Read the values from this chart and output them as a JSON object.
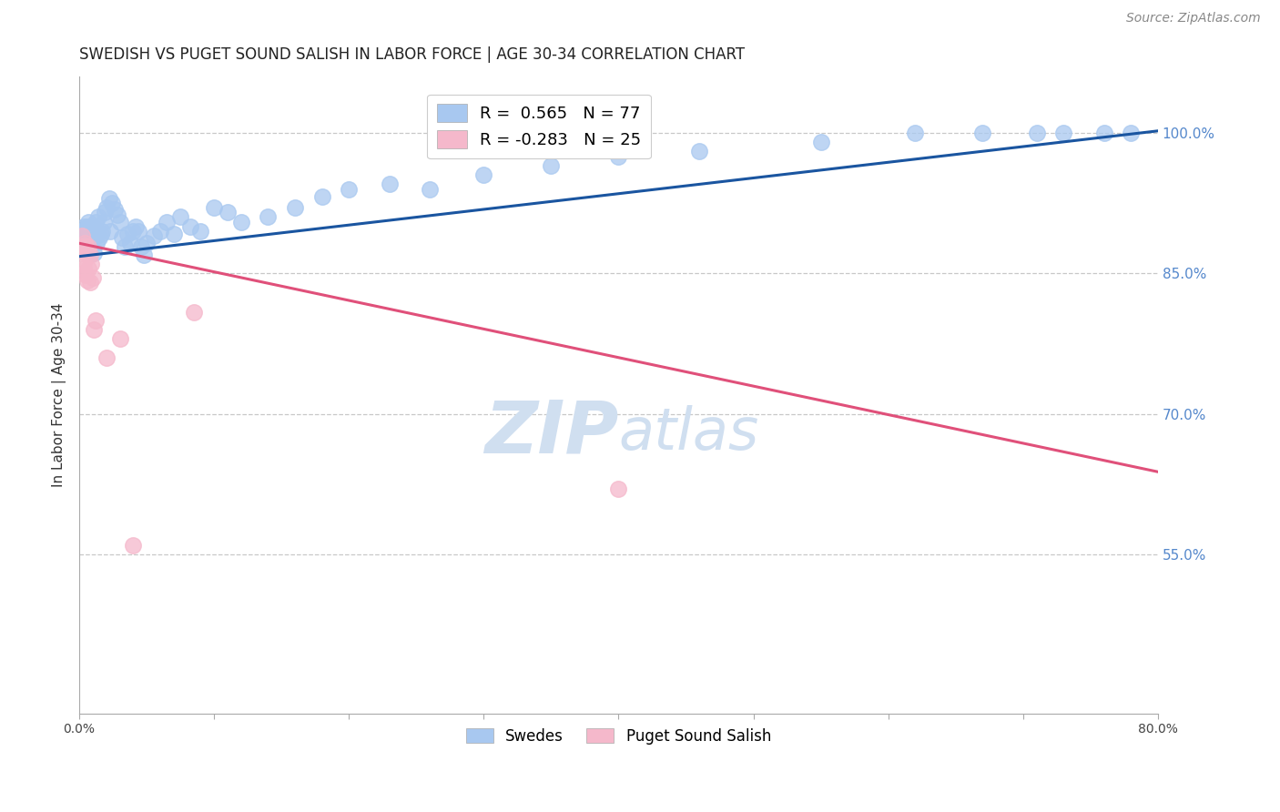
{
  "title": "SWEDISH VS PUGET SOUND SALISH IN LABOR FORCE | AGE 30-34 CORRELATION CHART",
  "source": "Source: ZipAtlas.com",
  "ylabel": "In Labor Force | Age 30-34",
  "xlim": [
    0.0,
    0.8
  ],
  "ylim": [
    0.38,
    1.06
  ],
  "right_yticks": [
    0.55,
    0.7,
    0.85,
    1.0
  ],
  "right_yticklabels": [
    "55.0%",
    "70.0%",
    "85.0%",
    "100.0%"
  ],
  "swedes_R": 0.565,
  "swedes_N": 77,
  "salish_R": -0.283,
  "salish_N": 25,
  "swedes_color": "#a8c8f0",
  "swedes_line_color": "#1a55a0",
  "salish_color": "#f5b8cb",
  "salish_line_color": "#e0507a",
  "background_color": "#ffffff",
  "grid_color": "#c8c8c8",
  "watermark_color": "#d0dff0",
  "title_color": "#222222",
  "source_color": "#888888",
  "right_axis_color": "#5588cc",
  "swedes_label": "Swedes",
  "salish_label": "Puget Sound Salish",
  "blue_line_x": [
    0.0,
    0.8
  ],
  "blue_line_y": [
    0.868,
    1.002
  ],
  "pink_line_x": [
    0.0,
    0.8
  ],
  "pink_line_y": [
    0.882,
    0.638
  ],
  "swedes_x": [
    0.002,
    0.003,
    0.003,
    0.003,
    0.004,
    0.004,
    0.004,
    0.005,
    0.005,
    0.005,
    0.006,
    0.006,
    0.006,
    0.007,
    0.007,
    0.007,
    0.008,
    0.008,
    0.009,
    0.009,
    0.01,
    0.01,
    0.011,
    0.011,
    0.012,
    0.013,
    0.013,
    0.014,
    0.015,
    0.016,
    0.017,
    0.018,
    0.019,
    0.02,
    0.022,
    0.023,
    0.024,
    0.026,
    0.028,
    0.03,
    0.032,
    0.034,
    0.036,
    0.038,
    0.04,
    0.042,
    0.044,
    0.046,
    0.048,
    0.05,
    0.055,
    0.06,
    0.065,
    0.07,
    0.075,
    0.082,
    0.09,
    0.1,
    0.11,
    0.12,
    0.14,
    0.16,
    0.18,
    0.2,
    0.23,
    0.26,
    0.3,
    0.35,
    0.4,
    0.46,
    0.55,
    0.62,
    0.67,
    0.71,
    0.73,
    0.76,
    0.78
  ],
  "swedes_y": [
    0.895,
    0.882,
    0.9,
    0.878,
    0.892,
    0.887,
    0.895,
    0.885,
    0.898,
    0.888,
    0.9,
    0.892,
    0.878,
    0.905,
    0.888,
    0.895,
    0.885,
    0.898,
    0.89,
    0.88,
    0.9,
    0.888,
    0.895,
    0.872,
    0.905,
    0.89,
    0.882,
    0.91,
    0.888,
    0.892,
    0.895,
    0.905,
    0.915,
    0.92,
    0.93,
    0.895,
    0.925,
    0.918,
    0.912,
    0.905,
    0.888,
    0.878,
    0.892,
    0.882,
    0.895,
    0.9,
    0.895,
    0.878,
    0.87,
    0.882,
    0.89,
    0.895,
    0.905,
    0.892,
    0.91,
    0.9,
    0.895,
    0.92,
    0.915,
    0.905,
    0.91,
    0.92,
    0.932,
    0.94,
    0.945,
    0.94,
    0.955,
    0.965,
    0.975,
    0.98,
    0.99,
    1.0,
    1.0,
    1.0,
    1.0,
    1.0,
    1.0
  ],
  "salish_x": [
    0.002,
    0.002,
    0.003,
    0.003,
    0.003,
    0.004,
    0.004,
    0.004,
    0.005,
    0.005,
    0.006,
    0.006,
    0.007,
    0.007,
    0.008,
    0.008,
    0.009,
    0.01,
    0.011,
    0.012,
    0.02,
    0.03,
    0.04,
    0.085,
    0.4
  ],
  "salish_y": [
    0.89,
    0.878,
    0.878,
    0.862,
    0.855,
    0.882,
    0.872,
    0.85,
    0.878,
    0.848,
    0.872,
    0.842,
    0.878,
    0.855,
    0.87,
    0.84,
    0.86,
    0.845,
    0.79,
    0.8,
    0.76,
    0.78,
    0.56,
    0.808,
    0.62
  ]
}
